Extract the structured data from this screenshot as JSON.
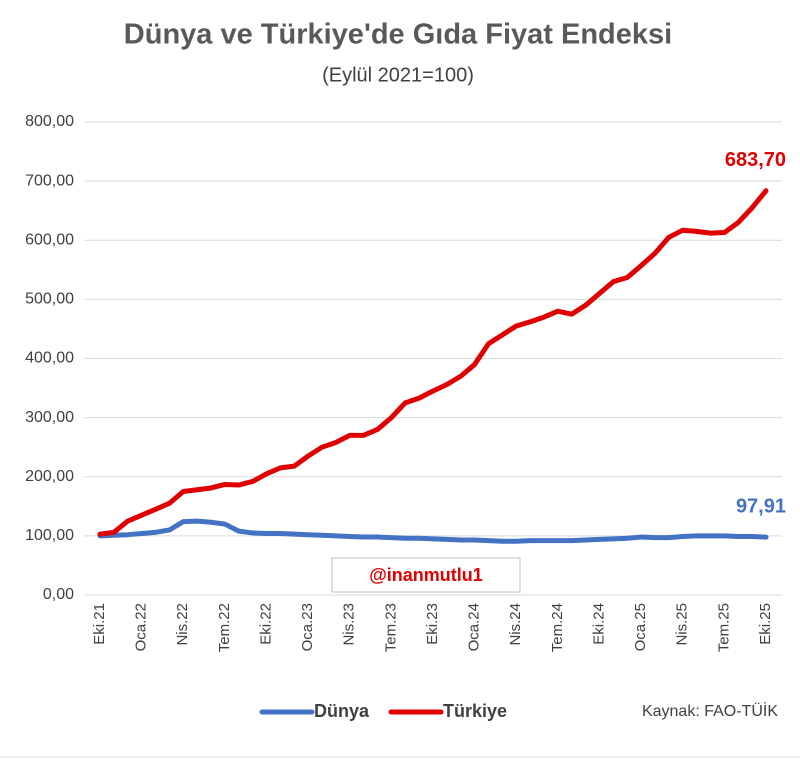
{
  "chart_data": {
    "type": "line",
    "title": "Dünya ve Türkiye'de Gıda Fiyat Endeksi",
    "subtitle": "(Eylül 2021=100)",
    "categories": [
      "Eki.21",
      null,
      null,
      "Oca.22",
      null,
      null,
      "Nis.22",
      null,
      null,
      "Tem.22",
      null,
      null,
      "Eki.22",
      null,
      null,
      "Oca.23",
      null,
      null,
      "Nis.23",
      null,
      null,
      "Tem.23",
      null,
      null,
      "Eki.23",
      null,
      null,
      "Oca.24",
      null,
      null,
      "Nis.24",
      null,
      null,
      "Tem.24",
      null,
      null,
      "Eki.24",
      null,
      null,
      "Oca.25",
      null,
      null,
      "Nis.25",
      null,
      null,
      "Tem.25",
      null,
      null,
      "Eki.25"
    ],
    "series": [
      {
        "name": "Dünya",
        "color": "#4472c4",
        "values": [
          100,
          101,
          102,
          104,
          106,
          110,
          124,
          125,
          123,
          120,
          108,
          105,
          104,
          104,
          103,
          102,
          101,
          100,
          99,
          98,
          98,
          97,
          96,
          96,
          95,
          94,
          93,
          93,
          92,
          91,
          91,
          92,
          92,
          92,
          92,
          93,
          94,
          95,
          96,
          98,
          97,
          97,
          99,
          100,
          100,
          100,
          99,
          99,
          97.91
        ],
        "value_labels": [
          null,
          null,
          null,
          null,
          null,
          null,
          null,
          null,
          null,
          null,
          null,
          null,
          null,
          null,
          null,
          null,
          null,
          null,
          null,
          null,
          null,
          null,
          null,
          null,
          null,
          null,
          null,
          null,
          null,
          null,
          null,
          null,
          null,
          null,
          null,
          null,
          null,
          null,
          null,
          null,
          null,
          null,
          null,
          null,
          null,
          null,
          null,
          null,
          "97,91"
        ]
      },
      {
        "name": "Türkiye",
        "color": "#e00000",
        "values": [
          103,
          106,
          125,
          135,
          145,
          155,
          175,
          178,
          181,
          187,
          186,
          192,
          205,
          215,
          218,
          235,
          250,
          258,
          270,
          270,
          280,
          300,
          325,
          333,
          345,
          356,
          370,
          390,
          425,
          440,
          455,
          462,
          470,
          480,
          475,
          490,
          510,
          530,
          537,
          557,
          578,
          605,
          617,
          615,
          612,
          613,
          630,
          655,
          683.7
        ],
        "value_labels": [
          null,
          null,
          null,
          null,
          null,
          null,
          null,
          null,
          null,
          null,
          null,
          null,
          null,
          null,
          null,
          null,
          null,
          null,
          null,
          null,
          null,
          null,
          null,
          null,
          null,
          null,
          null,
          null,
          null,
          null,
          null,
          null,
          null,
          null,
          null,
          null,
          null,
          null,
          null,
          null,
          null,
          null,
          null,
          null,
          null,
          null,
          null,
          null,
          "683,70"
        ]
      }
    ],
    "ylim": [
      0,
      800
    ],
    "yticks": [
      {
        "value": 0,
        "label": "0,00"
      },
      {
        "value": 100,
        "label": "100,00"
      },
      {
        "value": 200,
        "label": "200,00"
      },
      {
        "value": 300,
        "label": "300,00"
      },
      {
        "value": 400,
        "label": "400,00"
      },
      {
        "value": 500,
        "label": "500,00"
      },
      {
        "value": 600,
        "label": "600,00"
      },
      {
        "value": 700,
        "label": "700,00"
      },
      {
        "value": 800,
        "label": "800,00"
      }
    ],
    "grid": true,
    "legend": "bottom",
    "source": "Kaynak: FAO-TÜİK",
    "watermark": "@inanmutlu1"
  }
}
